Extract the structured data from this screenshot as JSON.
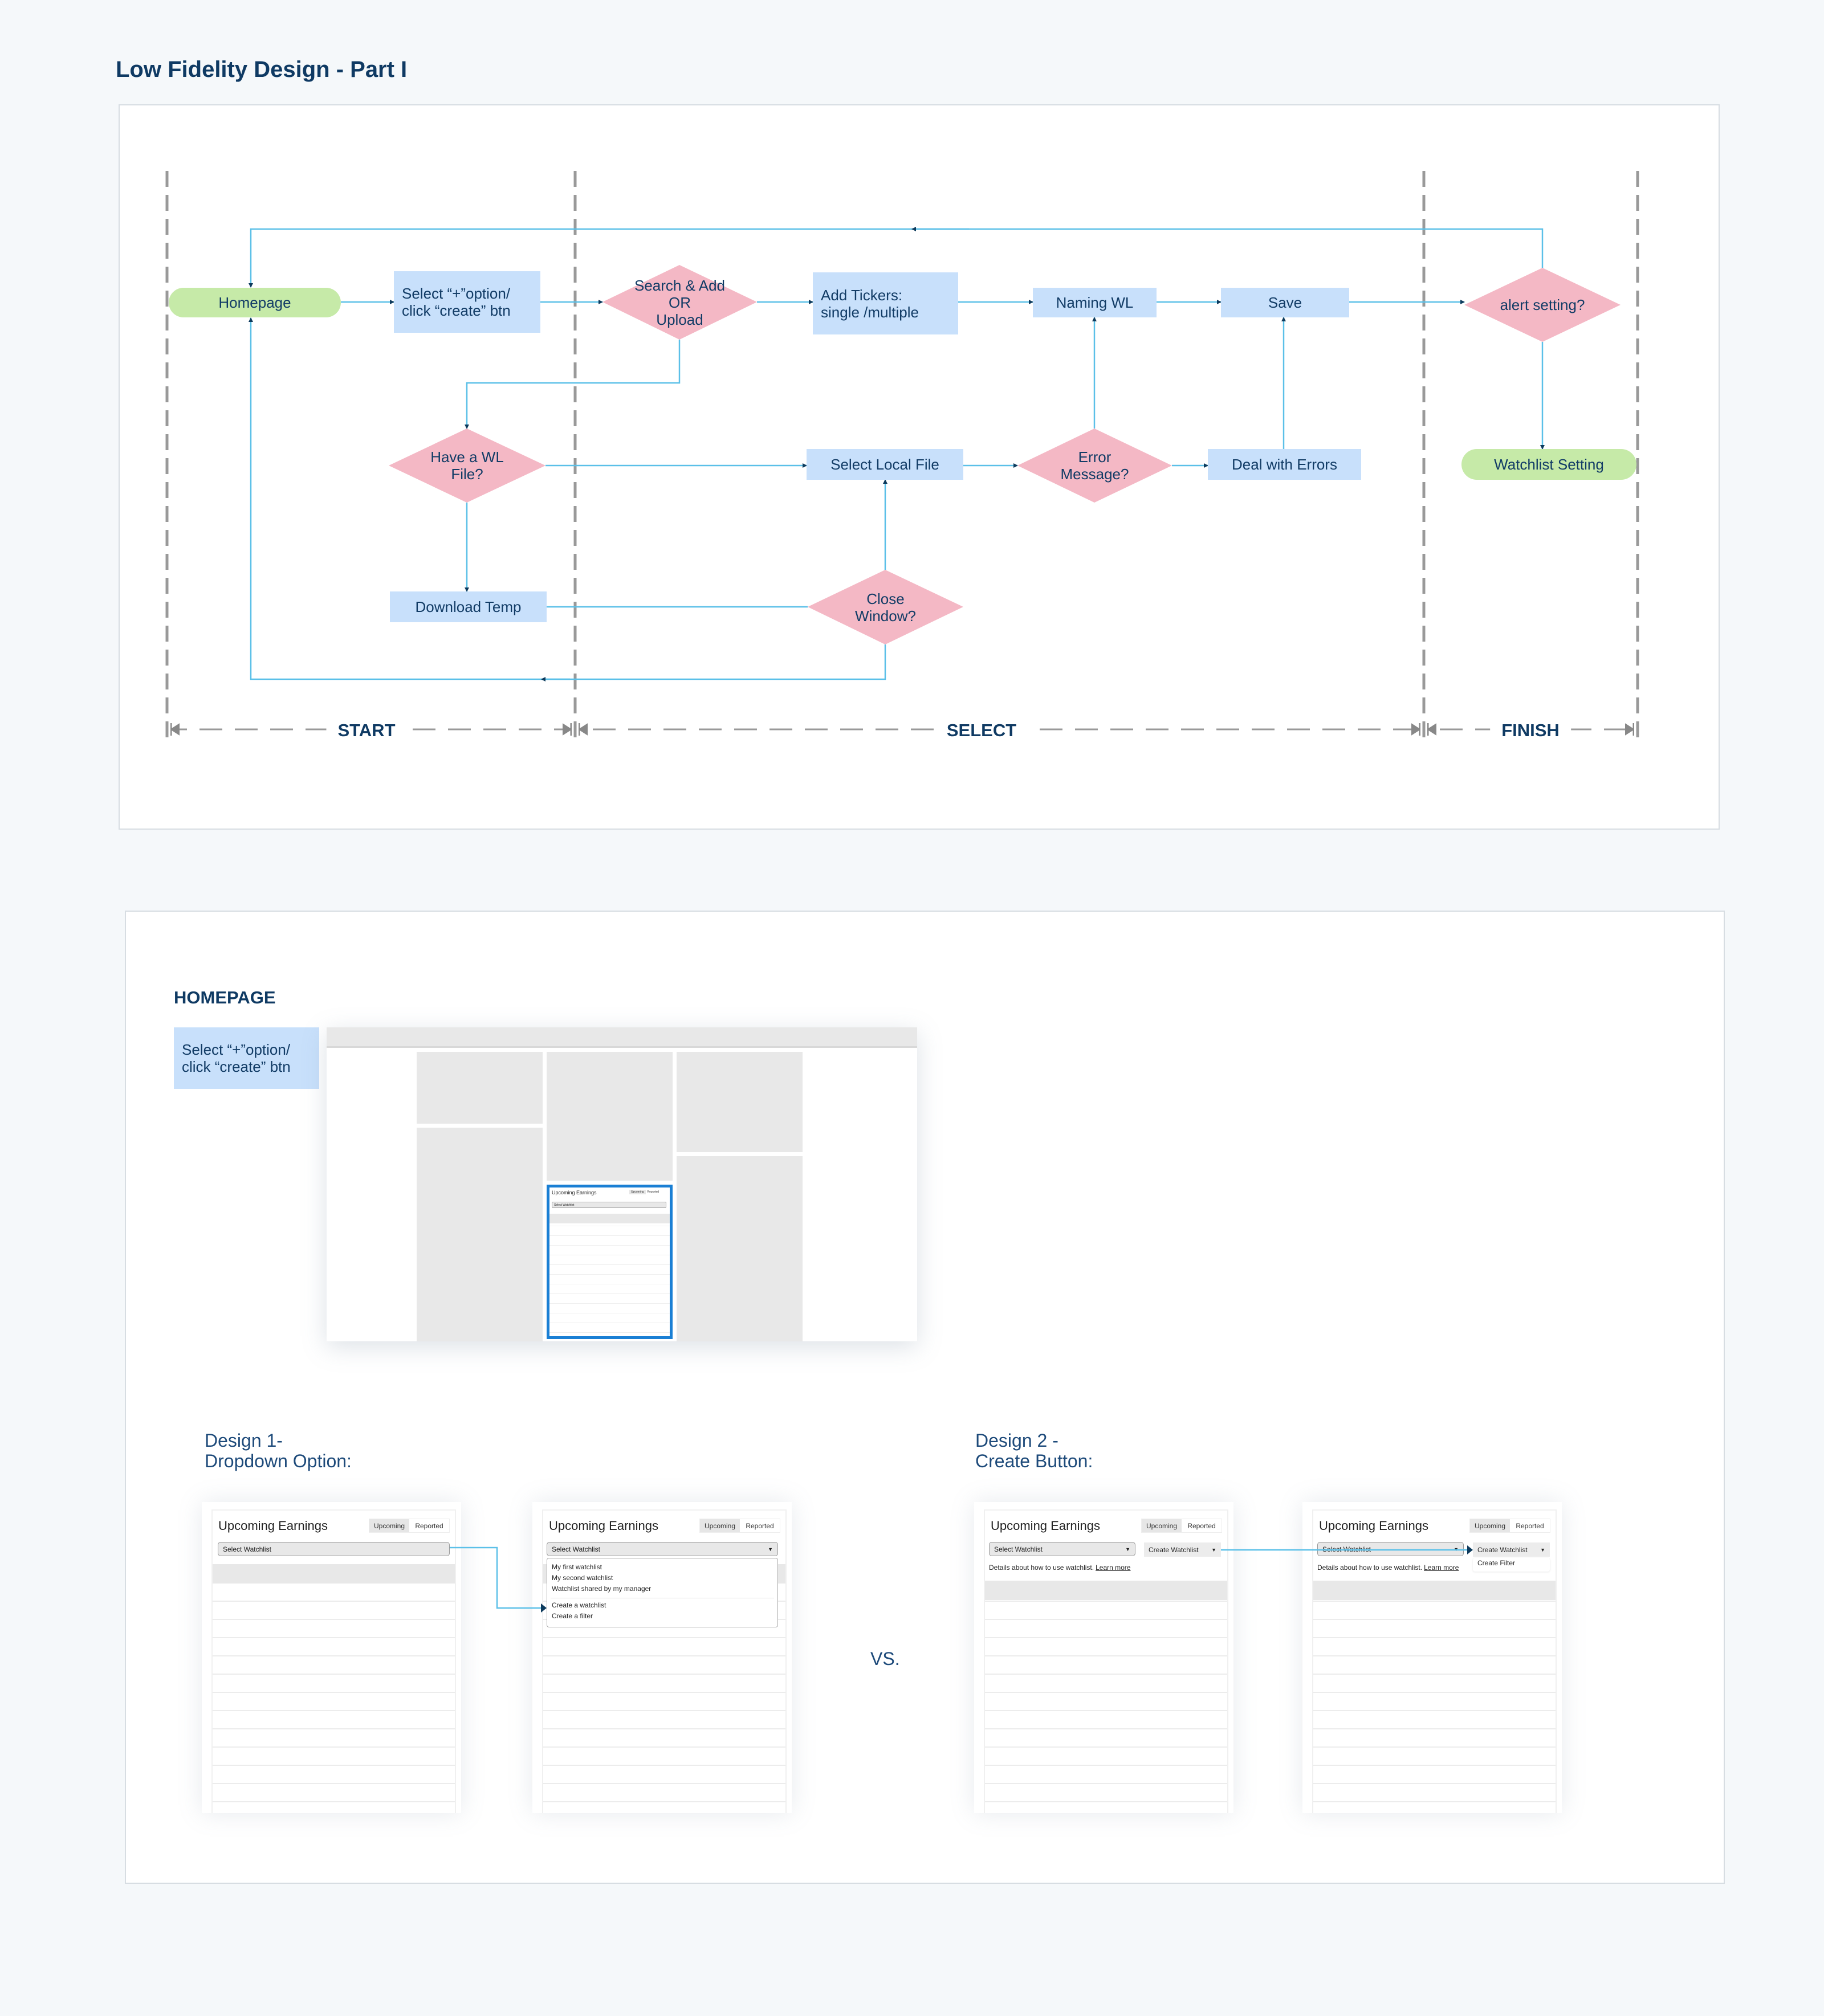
{
  "page_title": "Low Fidelity Design - Part I",
  "colors": {
    "process_box": "#c8e0fb",
    "decision": "#f4b8c5",
    "terminal": "#c6eaa8",
    "connector": "#5bc0e8",
    "arrowhead": "#0d3a5c",
    "highlight": "#1a7fd4"
  },
  "flowchart": {
    "phases": [
      "START",
      "SELECT",
      "FINISH"
    ],
    "nodes": {
      "homepage": {
        "type": "terminal",
        "lines": [
          "Homepage"
        ]
      },
      "select_option": {
        "type": "process",
        "lines": [
          "Select “+”option/",
          "click “create” btn"
        ]
      },
      "search_add": {
        "type": "decision",
        "lines": [
          "Search & Add",
          "OR",
          "Upload"
        ]
      },
      "add_tickers": {
        "type": "process",
        "lines": [
          "Add Tickers:",
          "single /multiple"
        ]
      },
      "naming_wl": {
        "type": "process",
        "lines": [
          "Naming WL"
        ]
      },
      "save": {
        "type": "process",
        "lines": [
          "Save"
        ]
      },
      "alert_setting": {
        "type": "decision",
        "lines": [
          "alert setting?"
        ]
      },
      "have_wl_file": {
        "type": "decision",
        "lines": [
          "Have a WL",
          "File?"
        ]
      },
      "select_local_file": {
        "type": "process",
        "lines": [
          "Select Local File"
        ]
      },
      "error_message": {
        "type": "decision",
        "lines": [
          "Error",
          "Message?"
        ]
      },
      "deal_with_errors": {
        "type": "process",
        "lines": [
          "Deal with Errors"
        ]
      },
      "watchlist_setting": {
        "type": "terminal",
        "lines": [
          "Watchlist Setting"
        ]
      },
      "download_temp": {
        "type": "process",
        "lines": [
          "Download Temp"
        ]
      },
      "close_window": {
        "type": "decision",
        "lines": [
          "Close",
          "Window?"
        ]
      }
    }
  },
  "homepage_section": {
    "heading": "HOMEPAGE",
    "note_lines": [
      "Select “+”option/",
      "click “create” btn"
    ],
    "widget": {
      "title": "Upcoming Earnings",
      "tabs": [
        "Upcoming",
        "Reported"
      ],
      "select": "Select Watchlist"
    }
  },
  "designs": {
    "design1": {
      "label_lines": [
        "Design 1-",
        "Dropdown Option:"
      ]
    },
    "design2": {
      "label_lines": [
        "Design 2 -",
        "Create Button:"
      ]
    },
    "vs": "VS.",
    "card": {
      "title": "Upcoming Earnings",
      "tabs": [
        "Upcoming",
        "Reported"
      ],
      "select_placeholder": "Select Watchlist",
      "dropdown_items": [
        "My first watchlist",
        "My second watchlist",
        "Watchlist shared by my manager"
      ],
      "dropdown_actions": [
        "Create a watchlist",
        "Create a filter"
      ],
      "create_button": "Create Watchlist",
      "create_menu": [
        "Create Filter"
      ],
      "details": "Details about how to use watchlist.",
      "learn_more": "Learn more"
    }
  }
}
